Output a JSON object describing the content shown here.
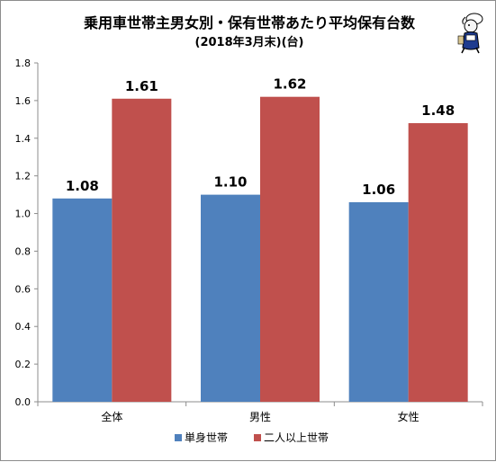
{
  "chart_data": {
    "type": "bar",
    "title": "乗用車世帯主男女別・保有世帯あたり平均保有台数",
    "subtitle": "(2018年3月末)(台)",
    "categories": [
      "全体",
      "男性",
      "女性"
    ],
    "series": [
      {
        "name": "単身世帯",
        "values": [
          1.08,
          1.1,
          1.06
        ],
        "labels": [
          "1.08",
          "1.10",
          "1.06"
        ],
        "color": "#4f81bd"
      },
      {
        "name": "二人以上世帯",
        "values": [
          1.61,
          1.62,
          1.48
        ],
        "labels": [
          "1.61",
          "1.62",
          "1.48"
        ],
        "color": "#c0504d"
      }
    ],
    "ylim": [
      0,
      1.8
    ],
    "yticks": [
      "0.0",
      "0.2",
      "0.4",
      "0.6",
      "0.8",
      "1.0",
      "1.2",
      "1.4",
      "1.6",
      "1.8"
    ],
    "grid": false,
    "legend_position": "bottom"
  }
}
